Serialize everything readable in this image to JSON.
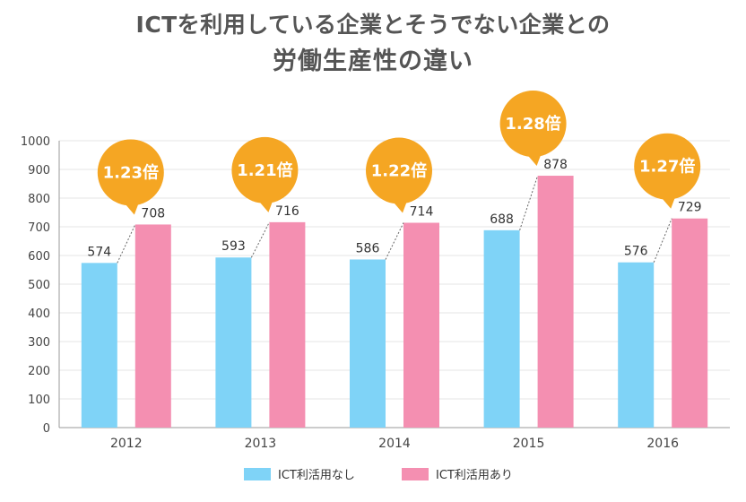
{
  "title_line1": "ICTを利用している企業とそうでない企業との",
  "title_line2": "労働生産性の違い",
  "chart_data": {
    "type": "bar",
    "categories": [
      "2012",
      "2013",
      "2014",
      "2015",
      "2016"
    ],
    "series": [
      {
        "name": "ICT利活用なし",
        "values": [
          574,
          593,
          586,
          688,
          576
        ],
        "color": "#7fd3f7"
      },
      {
        "name": "ICT利活用あり",
        "values": [
          708,
          716,
          714,
          878,
          729
        ],
        "color": "#f48fb1"
      }
    ],
    "ratio_labels": [
      "1.23倍",
      "1.21倍",
      "1.22倍",
      "1.28倍",
      "1.27倍"
    ],
    "ratio_color": "#f5a623",
    "ylim": [
      0,
      1000
    ],
    "yticks": [
      0,
      100,
      200,
      300,
      400,
      500,
      600,
      700,
      800,
      900,
      1000
    ],
    "grid": true,
    "legend_position": "bottom",
    "title": "ICTを利用している企業とそうでない企業との労働生産性の違い"
  }
}
